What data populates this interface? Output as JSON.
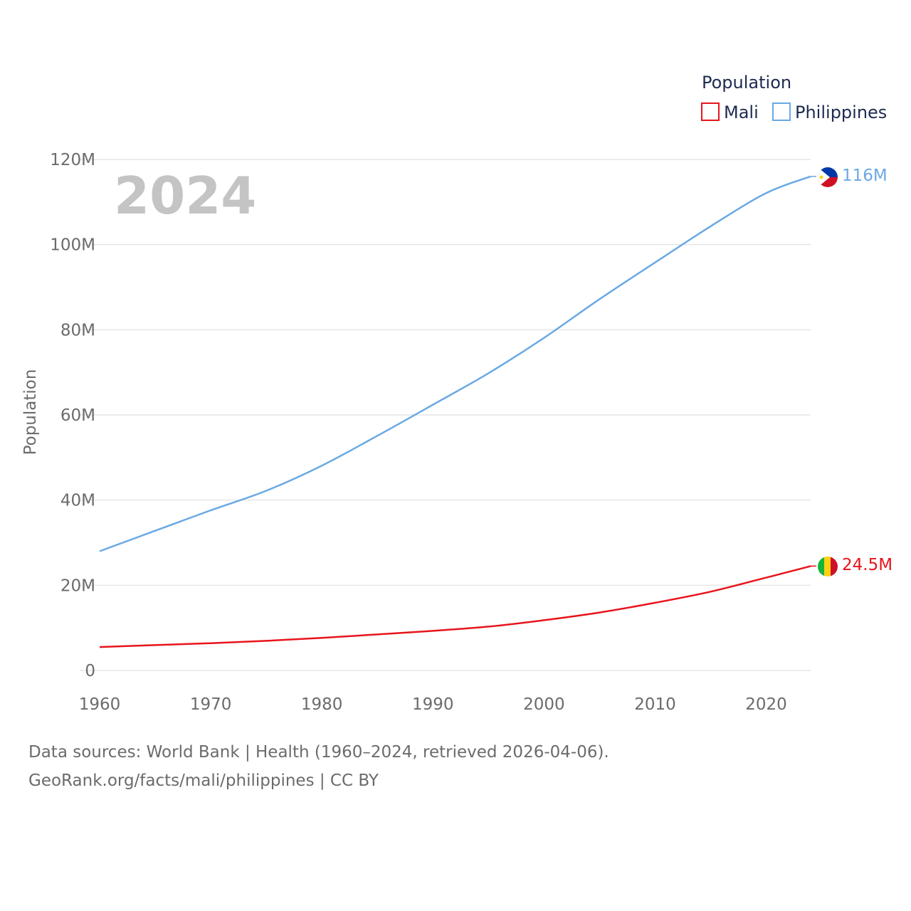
{
  "chart_data": {
    "type": "line",
    "year_label": "2024",
    "ylabel": "Population",
    "xlim": [
      1960,
      2024
    ],
    "ylim": [
      0,
      120000000
    ],
    "x_ticks": [
      1960,
      1970,
      1980,
      1990,
      2000,
      2010,
      2020
    ],
    "x_tick_labels": [
      "1960",
      "1970",
      "1980",
      "1990",
      "2000",
      "2010",
      "2020"
    ],
    "y_ticks": [
      0,
      20000000,
      40000000,
      60000000,
      80000000,
      100000000,
      120000000
    ],
    "y_tick_labels": [
      "0",
      "20M",
      "40M",
      "60M",
      "80M",
      "100M",
      "120M"
    ],
    "legend": {
      "title": "Population",
      "position": "top-right"
    },
    "series": [
      {
        "name": "Mali",
        "color": "#e8141c",
        "end_label": "24.5M",
        "flag": "mali-flag",
        "x": [
          1960,
          1965,
          1970,
          1975,
          1980,
          1985,
          1990,
          1995,
          2000,
          2005,
          2010,
          2015,
          2020,
          2024
        ],
        "values": [
          5500000,
          5950000,
          6400000,
          6950000,
          7650000,
          8450000,
          9300000,
          10300000,
          11800000,
          13600000,
          15900000,
          18500000,
          21800000,
          24500000
        ]
      },
      {
        "name": "Philippines",
        "color": "#6aa9e4",
        "end_label": "116M",
        "flag": "philippines-flag",
        "x": [
          1960,
          1965,
          1970,
          1975,
          1980,
          1985,
          1990,
          1995,
          2000,
          2005,
          2010,
          2015,
          2020,
          2024
        ],
        "values": [
          28000000,
          32800000,
          37600000,
          42200000,
          48100000,
          55100000,
          62400000,
          69800000,
          78100000,
          87200000,
          95800000,
          104300000,
          112100000,
          116000000
        ]
      }
    ]
  },
  "footer": {
    "line1": "Data sources: World Bank | Health (1960–2024, retrieved 2026-04-06).",
    "line2": "GeoRank.org/facts/mali/philippines | CC BY"
  }
}
